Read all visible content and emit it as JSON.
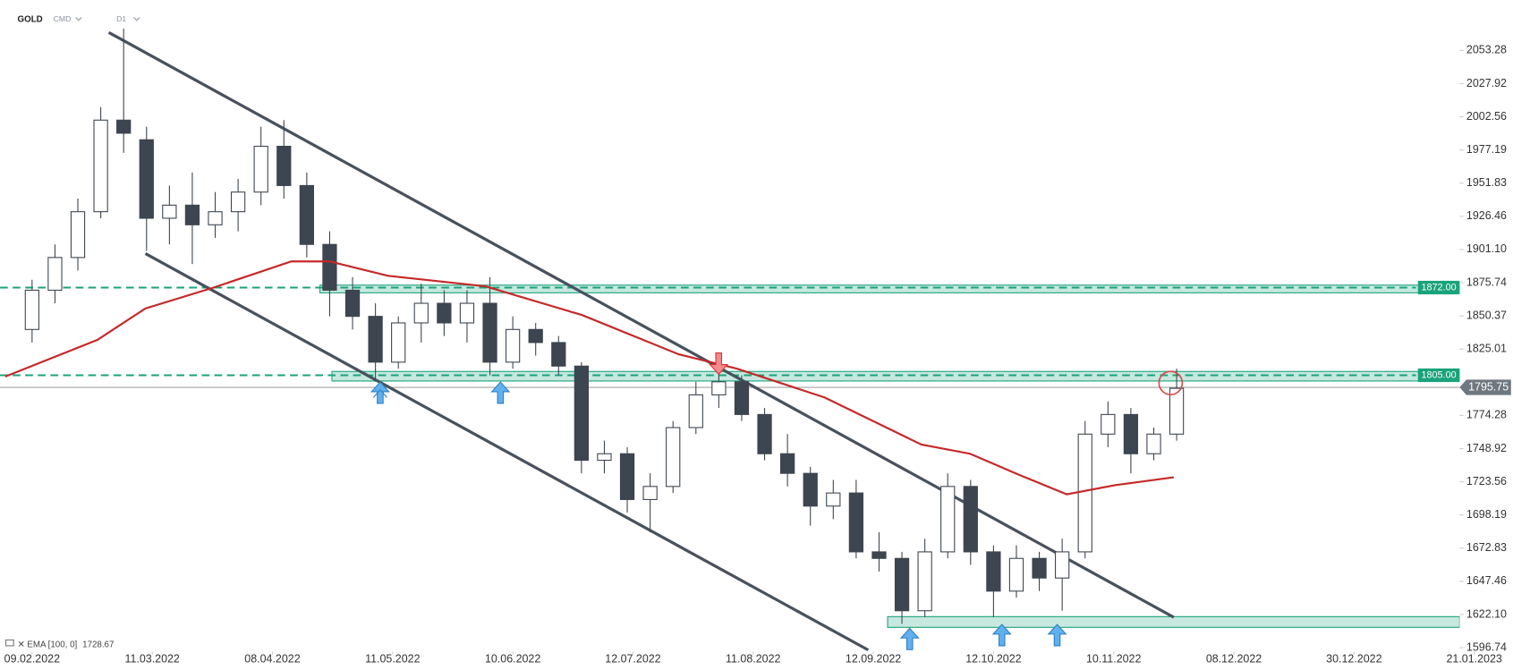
{
  "header": {
    "symbol": "GOLD",
    "market": "CMD",
    "interval": "D1"
  },
  "chart_data": {
    "type": "candlestick",
    "x": [
      0,
      4,
      8,
      12,
      16,
      20,
      24,
      28,
      32,
      36,
      40,
      44,
      48,
      52,
      56,
      60,
      64,
      68,
      72,
      76,
      80,
      84,
      88,
      92,
      96,
      100,
      104,
      108,
      112,
      116,
      120,
      124,
      128,
      132,
      136,
      140,
      144,
      148,
      152,
      156,
      160,
      164,
      168,
      172,
      176,
      180,
      184,
      188,
      192,
      196,
      200
    ],
    "open": [
      1840,
      1870,
      1895,
      1930,
      2000,
      1985,
      1925,
      1935,
      1920,
      1930,
      1945,
      1980,
      1950,
      1905,
      1870,
      1850,
      1815,
      1845,
      1860,
      1845,
      1860,
      1815,
      1840,
      1830,
      1812,
      1740,
      1745,
      1710,
      1720,
      1765,
      1790,
      1800,
      1775,
      1745,
      1730,
      1705,
      1715,
      1670,
      1665,
      1625,
      1670,
      1720,
      1670,
      1640,
      1665,
      1650,
      1670,
      1760,
      1775,
      1745,
      1760
    ],
    "high": [
      1878,
      1905,
      1940,
      2010,
      2070,
      1995,
      1950,
      1960,
      1945,
      1955,
      1995,
      2000,
      1960,
      1915,
      1880,
      1860,
      1850,
      1875,
      1870,
      1870,
      1880,
      1850,
      1845,
      1835,
      1815,
      1755,
      1750,
      1730,
      1770,
      1800,
      1815,
      1805,
      1780,
      1760,
      1735,
      1725,
      1725,
      1685,
      1670,
      1680,
      1730,
      1725,
      1675,
      1675,
      1670,
      1680,
      1770,
      1785,
      1780,
      1765,
      1810
    ],
    "low": [
      1830,
      1860,
      1885,
      1925,
      1975,
      1900,
      1905,
      1890,
      1910,
      1915,
      1935,
      1940,
      1895,
      1850,
      1840,
      1800,
      1810,
      1830,
      1835,
      1830,
      1805,
      1810,
      1820,
      1805,
      1730,
      1730,
      1700,
      1685,
      1715,
      1760,
      1780,
      1770,
      1740,
      1720,
      1690,
      1695,
      1665,
      1655,
      1615,
      1620,
      1665,
      1660,
      1620,
      1635,
      1640,
      1625,
      1665,
      1750,
      1730,
      1740,
      1755
    ],
    "close": [
      1870,
      1895,
      1930,
      2000,
      1990,
      1925,
      1935,
      1920,
      1930,
      1945,
      1980,
      1950,
      1905,
      1870,
      1850,
      1815,
      1845,
      1860,
      1845,
      1860,
      1815,
      1840,
      1830,
      1812,
      1740,
      1745,
      1710,
      1720,
      1765,
      1790,
      1800,
      1775,
      1745,
      1730,
      1705,
      1715,
      1670,
      1665,
      1625,
      1670,
      1720,
      1670,
      1640,
      1665,
      1650,
      1670,
      1760,
      1775,
      1745,
      1760,
      1795
    ],
    "up_color": "#ffffff",
    "down_color": "#3d4550",
    "wick_color": "#3d4550",
    "xlim": [
      -5.6,
      252.5
    ],
    "xticks": [
      {
        "value": 0,
        "label": "09.02.2022"
      },
      {
        "value": 21,
        "label": "11.03.2022"
      },
      {
        "value": 42,
        "label": "08.04.2022"
      },
      {
        "value": 63,
        "label": "11.05.2022"
      },
      {
        "value": 84,
        "label": "10.06.2022"
      },
      {
        "value": 105,
        "label": "12.07.2022"
      },
      {
        "value": 126,
        "label": "11.08.2022"
      },
      {
        "value": 147,
        "label": "12.09.2022"
      },
      {
        "value": 168,
        "label": "12.10.2022"
      },
      {
        "value": 189,
        "label": "10.11.2022"
      },
      {
        "value": 210,
        "label": "08.12.2022"
      },
      {
        "value": 231,
        "label": "30.12.2022"
      },
      {
        "value": 252,
        "label": "21.01.2023"
      }
    ],
    "ylim": [
      1593.78,
      2091.82
    ],
    "yticks": [
      2053.28,
      2027.92,
      2002.56,
      1977.19,
      1951.83,
      1926.46,
      {
        "value": 1901.1,
        "label": "1901.10"
      },
      1875.74,
      1850.37,
      1825.01,
      1774.28,
      1748.92,
      1723.56,
      1698.19,
      1672.83,
      1647.46,
      {
        "value": 1622.1,
        "label": "1622.10"
      },
      1596.74
    ],
    "ema": {
      "name": "EMA [100, 0]",
      "last": 1728.67,
      "color": "#c62828",
      "x": [
        -4.7,
        11.4,
        19.8,
        31.7,
        45.3,
        52,
        62.2,
        79.2,
        96.1,
        113,
        123.2,
        138.5,
        155.4,
        163.9,
        172.4,
        180.8,
        189.3,
        199.5
      ],
      "values": [
        1804,
        1832,
        1856,
        1872,
        1892,
        1892,
        1881,
        1873,
        1851,
        1821,
        1810,
        1788,
        1752,
        1745,
        1729,
        1714,
        1721,
        1727
      ]
    },
    "levels": [
      {
        "value": 1872,
        "label": "1872.00"
      },
      {
        "value": 1805,
        "label": "1805.00"
      }
    ],
    "level_color": "#1aa37a",
    "zones": [
      {
        "x": 50.3,
        "y": [
          1868,
          1873.9
        ]
      },
      {
        "x": 52.4,
        "y": [
          1800.6,
          1807.9
        ]
      },
      {
        "x": 149.5,
        "y": [
          1612.3,
          1620.5
        ]
      }
    ],
    "zone_color": "#1aa37a",
    "last_price": 1795.75,
    "trendlines": [
      {
        "x": [
          13.4,
          199.5
        ],
        "y": [
          2067,
          1620
        ]
      },
      {
        "x": [
          19.8,
          146.1
        ],
        "y": [
          1898,
          1595
        ]
      }
    ],
    "trendline_color": "#48525e"
  }
}
